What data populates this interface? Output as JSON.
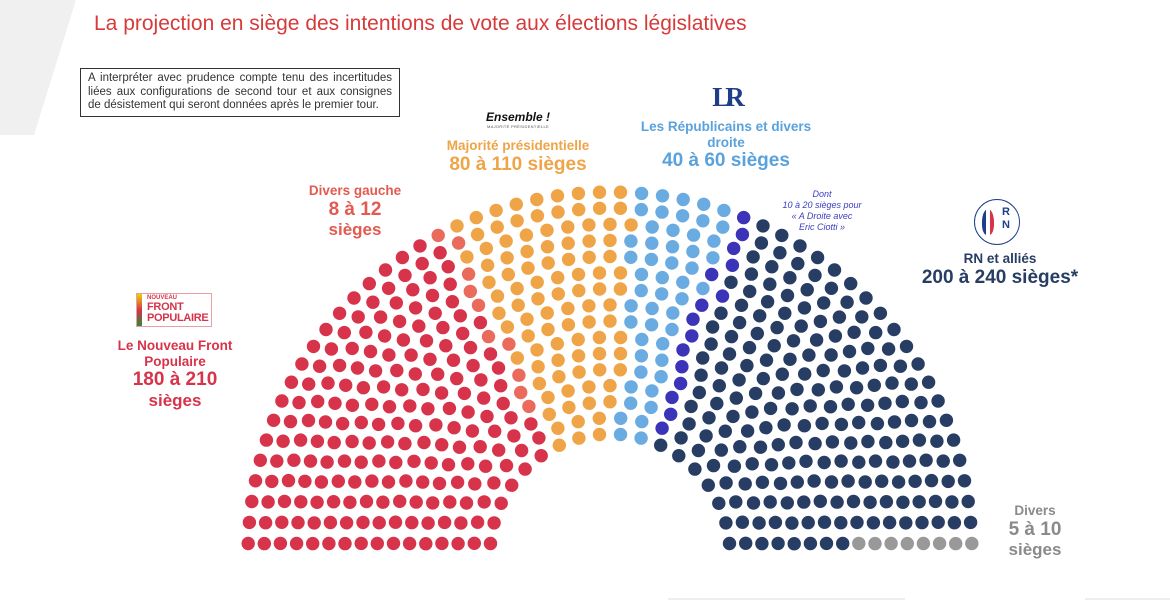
{
  "title": "La projection en siège des intentions de vote aux élections législatives",
  "note": "A interpréter avec prudence compte tenu des incertitudes liées aux configurations de second tour et aux consignes de désistement qui seront données après le premier tour.",
  "logos": {
    "nfp_line1": "NOUVEAU",
    "nfp_line2": "FRONT",
    "nfp_line3": "POPULAIRE",
    "ensemble": "Ensemble !",
    "ensemble_sub": "MAJORITÉ PRÉSIDENTIELLE",
    "lr": "LR",
    "rn": "RN"
  },
  "chart_data": {
    "type": "parliament",
    "title": "La projection en siège des intentions de vote aux élections législatives",
    "total_seats": 577,
    "groups": [
      {
        "name_lines": [
          "Le Nouveau Front",
          "Populaire"
        ],
        "count_lines": [
          "180 à 210",
          "sièges"
        ],
        "seats": 195,
        "color": "#d7334a"
      },
      {
        "name_lines": [
          "Divers gauche"
        ],
        "count_lines": [
          "8 à 12",
          "sièges"
        ],
        "seats": 10,
        "color": "#ea6a5b"
      },
      {
        "name_lines": [
          "Majorité présidentielle"
        ],
        "count_lines": [
          "80 à 110 sièges"
        ],
        "seats": 95,
        "color": "#efa448"
      },
      {
        "name_lines": [
          "Les Républicains et divers",
          "droite"
        ],
        "count_lines": [
          "40 à 60 sièges"
        ],
        "seats": 50,
        "color": "#6aace1"
      },
      {
        "name_lines": [],
        "count_lines": [],
        "seats": 15,
        "color": "#3b33b8"
      },
      {
        "name_lines": [
          "RN et alliés"
        ],
        "count_lines": [
          "200 à 240 sièges*"
        ],
        "seats": 204,
        "color": "#283d63"
      },
      {
        "name_lines": [
          "Divers"
        ],
        "count_lines": [
          "5 à 10",
          "sièges"
        ],
        "seats": 8,
        "color": "#999999"
      }
    ],
    "subnote_lines": [
      "Dont",
      "10 à 20 sièges pour",
      "« A Droite avec",
      "Eric Ciotti »"
    ]
  }
}
